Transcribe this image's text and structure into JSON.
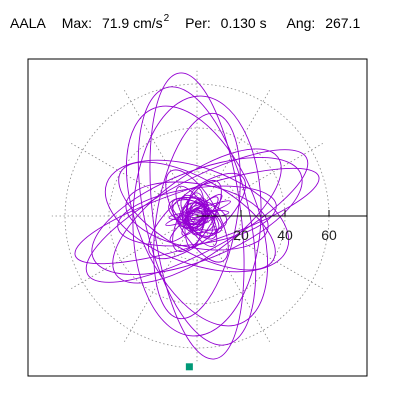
{
  "header": {
    "station": "AALA",
    "max_label": "Max:",
    "max_value": "71.9 cm/s",
    "max_exponent": "2",
    "period_label": "Per:",
    "period_value": "0.130 s",
    "angle_label": "Ang:",
    "angle_value": "267.1"
  },
  "chart_data": {
    "type": "polar-particle-motion",
    "title": "",
    "radial_ticks": [
      20,
      40,
      60
    ],
    "radial_tick_labels": [
      "20",
      "40",
      "60"
    ],
    "radial_max": 80,
    "grid": "dotted polar grid",
    "trace_color": "#9400d3",
    "marker_color": "#009977",
    "marker_angle_deg": 267.1,
    "marker_radius": 71.9,
    "ellipses": [
      {
        "a": 72,
        "b": 22,
        "rot": 97
      },
      {
        "a": 66,
        "b": 26,
        "rot": 103
      },
      {
        "a": 60,
        "b": 32,
        "rot": 88
      },
      {
        "a": 58,
        "b": 30,
        "rot": 112
      },
      {
        "a": 52,
        "b": 20,
        "rot": 80
      },
      {
        "a": 62,
        "b": 18,
        "rot": 28
      },
      {
        "a": 56,
        "b": 22,
        "rot": 22
      },
      {
        "a": 64,
        "b": 14,
        "rot": 18
      },
      {
        "a": 50,
        "b": 20,
        "rot": 36
      },
      {
        "a": 48,
        "b": 24,
        "rot": 160
      },
      {
        "a": 44,
        "b": 18,
        "rot": 150
      },
      {
        "a": 40,
        "b": 14,
        "rot": 8
      },
      {
        "a": 36,
        "b": 16,
        "rot": 170
      },
      {
        "a": 30,
        "b": 12,
        "rot": 40
      },
      {
        "a": 26,
        "b": 10,
        "rot": 120
      },
      {
        "a": 20,
        "b": 8,
        "rot": 60
      },
      {
        "a": 14,
        "b": 6,
        "rot": 150
      },
      {
        "a": 10,
        "b": 5,
        "rot": 20
      }
    ]
  }
}
